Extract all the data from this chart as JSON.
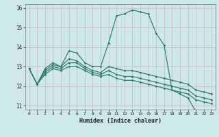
{
  "xlabel": "Humidex (Indice chaleur)",
  "xlim": [
    -0.5,
    23.5
  ],
  "ylim": [
    10.8,
    16.2
  ],
  "yticks": [
    11,
    12,
    13,
    14,
    15,
    16
  ],
  "xticks": [
    0,
    1,
    2,
    3,
    4,
    5,
    6,
    7,
    8,
    9,
    10,
    11,
    12,
    13,
    14,
    15,
    16,
    17,
    18,
    19,
    20,
    21,
    22,
    23
  ],
  "bg_color": "#cce8e8",
  "grid_color": "#b8d8d8",
  "line_color": "#2d7a6a",
  "series": [
    {
      "x": [
        0,
        1,
        2,
        3,
        4,
        5,
        6,
        7,
        8,
        9,
        10,
        11,
        12,
        13,
        14,
        15,
        16,
        17,
        18,
        19,
        20,
        21,
        22,
        23
      ],
      "y": [
        12.9,
        12.1,
        12.9,
        13.2,
        13.0,
        13.8,
        13.7,
        13.2,
        13.0,
        13.0,
        14.2,
        15.6,
        15.7,
        15.9,
        15.8,
        15.7,
        14.7,
        14.1,
        11.8,
        11.6,
        11.4,
        10.7,
        10.7,
        10.7
      ]
    },
    {
      "x": [
        0,
        1,
        2,
        3,
        4,
        5,
        6,
        7,
        8,
        9,
        10,
        11,
        12,
        13,
        14,
        15,
        16,
        17,
        18,
        19,
        20,
        21,
        22,
        23
      ],
      "y": [
        12.9,
        12.1,
        12.8,
        13.1,
        13.0,
        13.4,
        13.3,
        13.0,
        12.8,
        12.7,
        13.0,
        12.9,
        12.8,
        12.8,
        12.7,
        12.6,
        12.5,
        12.4,
        12.3,
        12.2,
        12.1,
        11.8,
        11.7,
        11.6
      ]
    },
    {
      "x": [
        0,
        1,
        2,
        3,
        4,
        5,
        6,
        7,
        8,
        9,
        10,
        11,
        12,
        13,
        14,
        15,
        16,
        17,
        18,
        19,
        20,
        21,
        22,
        23
      ],
      "y": [
        12.9,
        12.1,
        12.7,
        13.0,
        12.9,
        13.2,
        13.2,
        12.9,
        12.7,
        12.6,
        12.8,
        12.6,
        12.5,
        12.5,
        12.4,
        12.3,
        12.2,
        12.1,
        12.0,
        11.9,
        11.8,
        11.5,
        11.4,
        11.3
      ]
    },
    {
      "x": [
        0,
        1,
        2,
        3,
        4,
        5,
        6,
        7,
        8,
        9,
        10,
        11,
        12,
        13,
        14,
        15,
        16,
        17,
        18,
        19,
        20,
        21,
        22,
        23
      ],
      "y": [
        12.9,
        12.1,
        12.6,
        12.9,
        12.8,
        13.0,
        13.0,
        12.8,
        12.6,
        12.5,
        12.6,
        12.4,
        12.3,
        12.3,
        12.2,
        12.1,
        12.0,
        11.9,
        11.8,
        11.7,
        11.6,
        11.3,
        11.2,
        11.1
      ]
    }
  ]
}
